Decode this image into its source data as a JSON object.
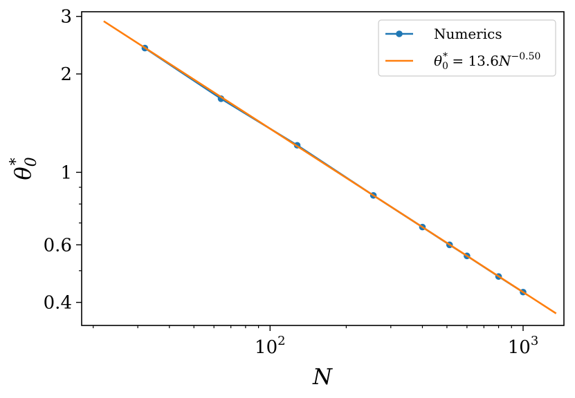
{
  "chart_data": {
    "type": "line",
    "xscale": "log",
    "yscale": "log",
    "xlim": [
      18,
      1450
    ],
    "ylim": [
      0.34,
      3.1
    ],
    "xlabel": "N",
    "ylabel": "θ₀*",
    "xticks": [
      {
        "value": 100,
        "base": "10",
        "exp": "2"
      },
      {
        "value": 1000,
        "base": "10",
        "exp": "3"
      }
    ],
    "yticks": [
      {
        "value": 0.4,
        "label": "0.4"
      },
      {
        "value": 0.6,
        "label": "0.6"
      },
      {
        "value": 1,
        "label": "1"
      },
      {
        "value": 2,
        "label": "2"
      },
      {
        "value": 3,
        "label": "3"
      }
    ],
    "legend_position": "top-right",
    "series": [
      {
        "name": "Numerics",
        "color": "#1f77b4",
        "marker": "circle",
        "x": [
          32,
          64,
          128,
          256,
          400,
          512,
          600,
          800,
          1000
        ],
        "y": [
          2.4,
          1.68,
          1.21,
          0.85,
          0.68,
          0.6,
          0.555,
          0.48,
          0.43
        ]
      },
      {
        "name": "θ₀* = 13.6N^−0.50",
        "legend": {
          "lhs_sym": "θ",
          "lhs_sub": "0",
          "lhs_sup": "*",
          "rhs": " = 13.6",
          "rhs_var": "N",
          "rhs_exp": "−0.50"
        },
        "color": "#ff7f0e",
        "marker": "none",
        "fit": {
          "coefficient": 13.6,
          "exponent": -0.5
        },
        "x": [
          22,
          1350
        ],
        "y": [
          2.9,
          0.37
        ]
      }
    ]
  }
}
